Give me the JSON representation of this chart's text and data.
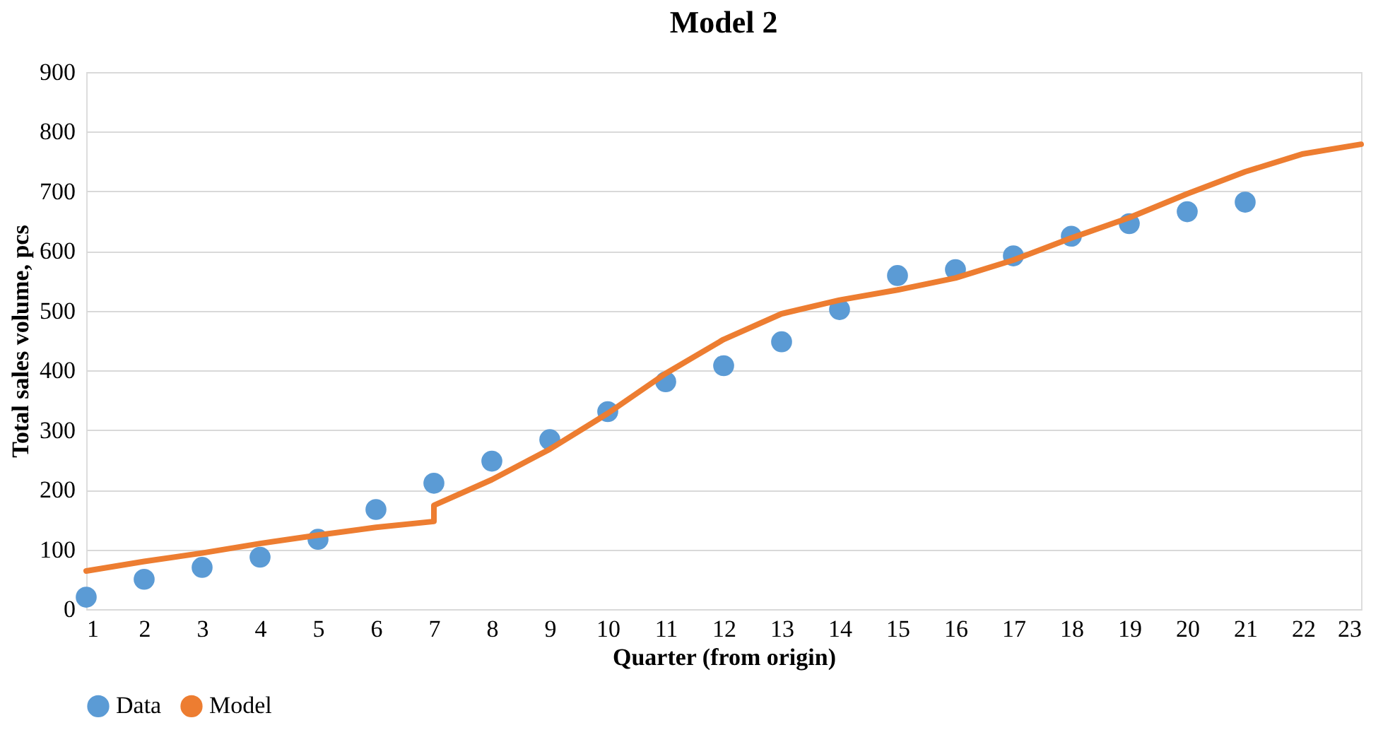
{
  "chart_data": {
    "type": "scatter",
    "title": "Model 2",
    "xlabel": "Quarter (from origin)",
    "ylabel": "Total sales volume, pcs",
    "xlim": [
      1,
      23
    ],
    "xticks": [
      1,
      2,
      3,
      4,
      5,
      6,
      7,
      8,
      9,
      10,
      11,
      12,
      13,
      14,
      15,
      16,
      17,
      18,
      19,
      20,
      21,
      22,
      23
    ],
    "ylim": [
      0,
      900
    ],
    "yticks": [
      0,
      100,
      200,
      300,
      400,
      500,
      600,
      700,
      800,
      900
    ],
    "grid": "y",
    "legend": "bottom",
    "series": [
      {
        "name": "Data",
        "marker": "circle",
        "color": "#5b9bd5",
        "x": [
          1,
          2,
          3,
          4,
          5,
          6,
          7,
          8,
          9,
          10,
          11,
          12,
          13,
          14,
          15,
          16,
          17,
          18,
          19,
          20,
          21
        ],
        "values": [
          20,
          50,
          70,
          87,
          117,
          167,
          211,
          248,
          284,
          331,
          381,
          408,
          448,
          502,
          559,
          569,
          592,
          625,
          646,
          666,
          682
        ]
      },
      {
        "name": "Model",
        "type": "line",
        "marker": "none",
        "line_style": "solid",
        "color": "#ed7d31",
        "x": [
          1,
          2,
          3,
          4,
          5,
          6,
          7,
          7,
          8,
          9,
          10,
          11,
          12,
          13,
          14,
          15,
          16,
          17,
          18,
          19,
          20,
          21,
          22,
          23
        ],
        "values": [
          64,
          80,
          94,
          110,
          124,
          137,
          147,
          174,
          217,
          268,
          328,
          395,
          452,
          495,
          518,
          535,
          555,
          585,
          622,
          656,
          696,
          733,
          763,
          779
        ]
      }
    ]
  }
}
